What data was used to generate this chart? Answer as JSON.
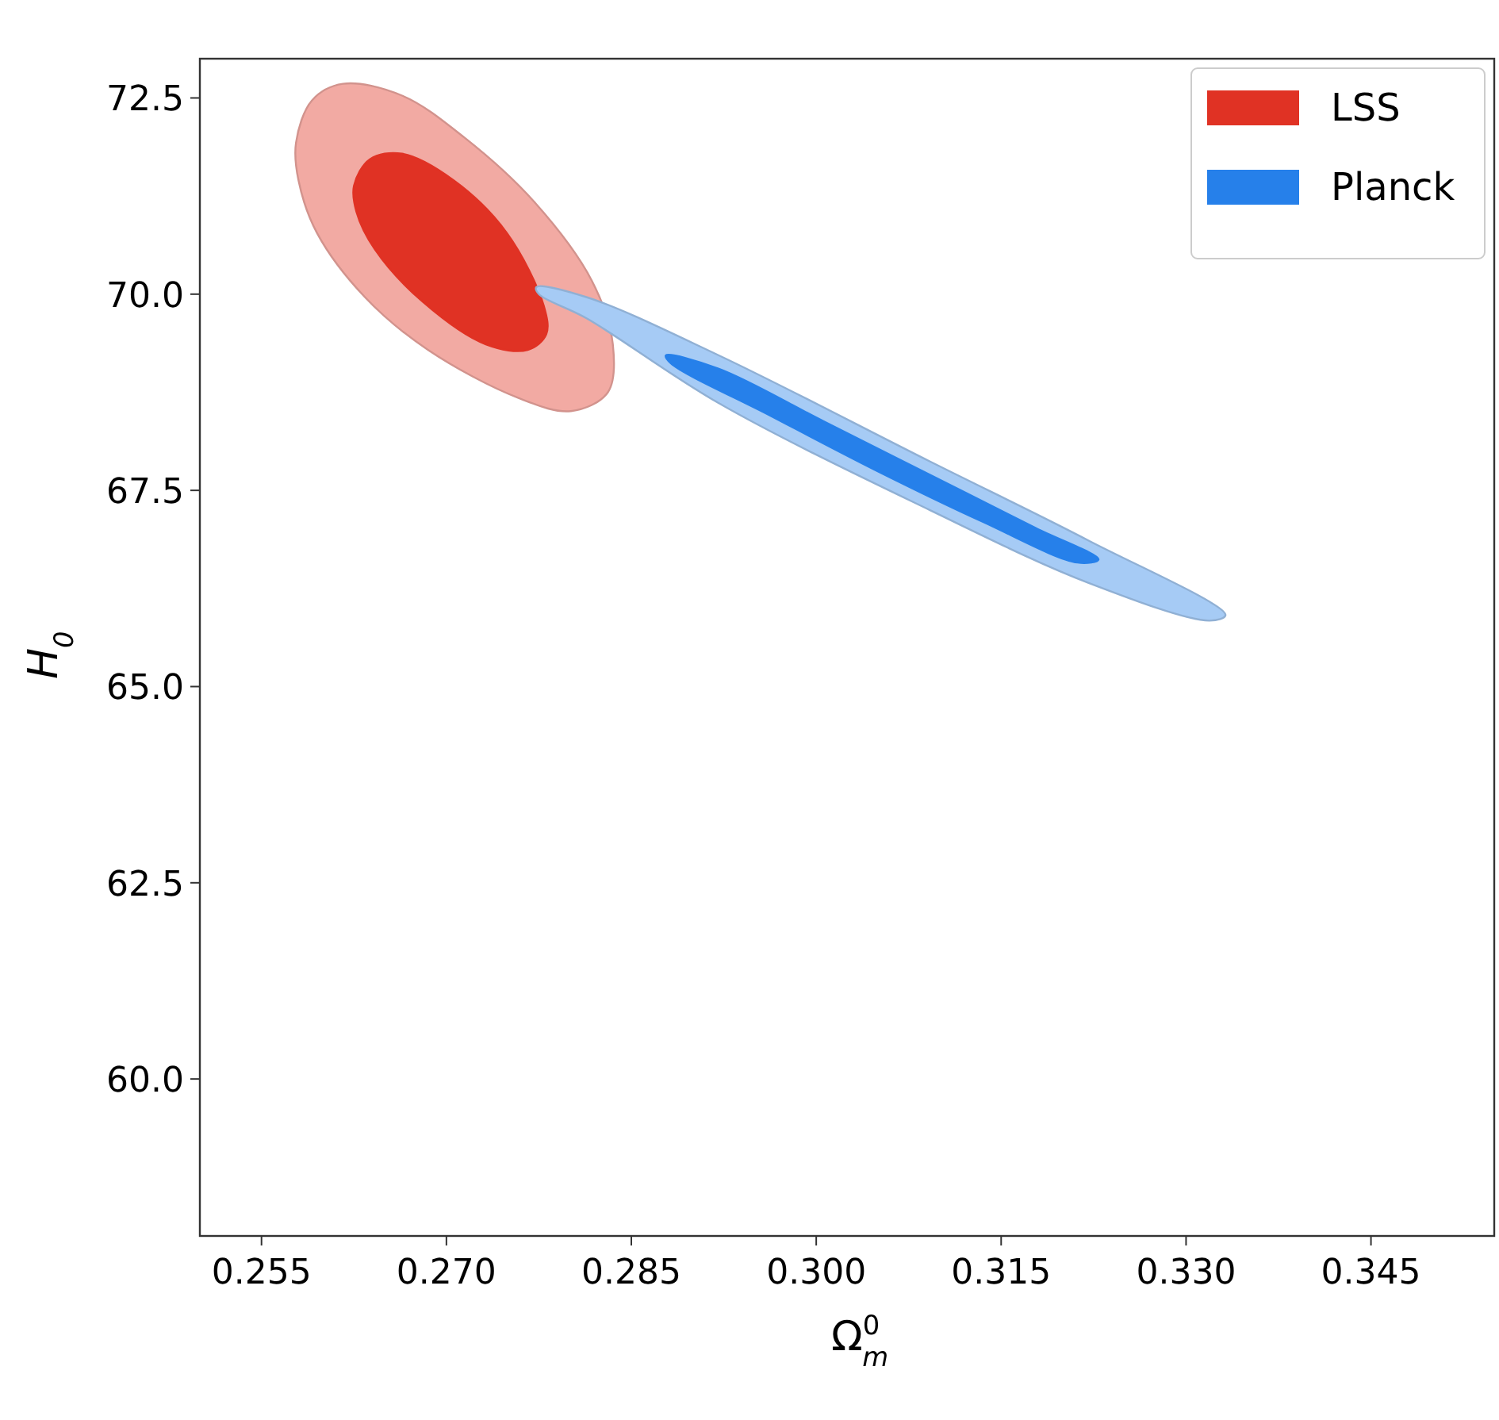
{
  "chart_data": {
    "type": "area",
    "xlabel": "Ω$^{0}$$_{m}$",
    "ylabel": "H$_{0}$",
    "xlim": [
      0.25,
      0.355
    ],
    "ylim": [
      58,
      73
    ],
    "xticks": [
      0.255,
      {
        "value": 0.27,
        "label": "0.270"
      },
      0.285,
      {
        "value": 0.3,
        "label": "0.300"
      },
      0.315,
      {
        "value": 0.33,
        "label": "0.330"
      },
      0.345
    ],
    "yticks": [
      {
        "value": 60,
        "label": "60.0"
      },
      {
        "value": 62.5,
        "label": "62.5"
      },
      {
        "value": 65,
        "label": "65.0"
      },
      {
        "value": 67.5,
        "label": "67.5"
      },
      {
        "value": 70,
        "label": "70.0"
      },
      {
        "value": 72.5,
        "label": "72.5"
      }
    ],
    "grid": false,
    "legend": "top right",
    "series": [
      {
        "color": "#f2aaa3",
        "x": [
          0.2578,
          0.2591,
          0.2616,
          0.2664,
          0.2715,
          0.2771,
          0.2818,
          0.2835,
          0.2831,
          0.2801,
          0.2758,
          0.2685,
          0.2634,
          0.2595,
          0.258
        ],
        "values": [
          71.93,
          72.47,
          72.68,
          72.53,
          71.99,
          71.18,
          70.17,
          69.36,
          68.75,
          68.51,
          68.68,
          69.29,
          69.96,
          70.78,
          71.45
        ]
      },
      {
        "name": "LSS",
        "color": "#e03224",
        "x": [
          0.2625,
          0.2638,
          0.2664,
          0.2706,
          0.2749,
          0.2779,
          0.2781,
          0.2766,
          0.2732,
          0.2681,
          0.2642,
          0.2627
        ],
        "values": [
          71.38,
          71.72,
          71.79,
          71.45,
          70.78,
          69.85,
          69.49,
          69.29,
          69.36,
          69.9,
          70.57,
          71.05
        ]
      },
      {
        "color": "#a6cbf5",
        "x": [
          0.2773,
          0.2814,
          0.2921,
          0.3092,
          0.3221,
          0.3332,
          0.3319,
          0.3221,
          0.3092,
          0.2921,
          0.2814,
          0.2775
        ],
        "values": [
          70.09,
          69.96,
          69.22,
          67.87,
          66.86,
          65.91,
          65.84,
          66.32,
          67.25,
          68.61,
          69.69,
          70.0
        ]
      },
      {
        "name": "Planck",
        "color": "#2680ea",
        "x": [
          0.2878,
          0.2921,
          0.3006,
          0.3092,
          0.3178,
          0.3229,
          0.3212,
          0.3135,
          0.3049,
          0.2963,
          0.2882
        ],
        "values": [
          69.22,
          69.05,
          68.38,
          67.7,
          67.02,
          66.62,
          66.58,
          67.1,
          67.75,
          68.45,
          69.12
        ]
      }
    ]
  }
}
